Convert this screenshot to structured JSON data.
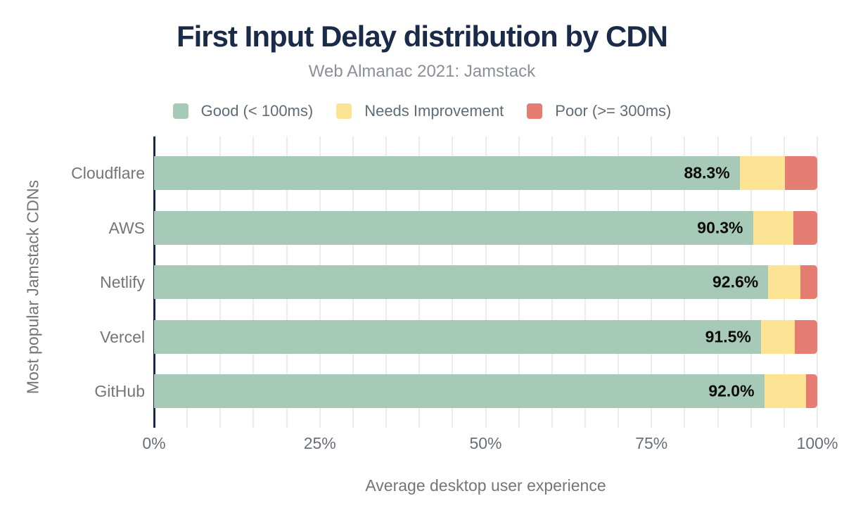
{
  "title": "First Input Delay distribution by CDN",
  "subtitle": "Web Almanac 2021: Jamstack",
  "colors": {
    "good": "#a6c9b8",
    "needs_improvement": "#fde394",
    "poor": "#e57d72",
    "title_text": "#1a2b49",
    "axis_line": "#1a2b49",
    "muted_text": "#757575",
    "grid": "#ececec",
    "bar_value_text": "#0b0b0b"
  },
  "legend": [
    {
      "label": "Good (< 100ms)",
      "color_key": "good"
    },
    {
      "label": "Needs Improvement",
      "color_key": "needs_improvement"
    },
    {
      "label": "Poor (>= 300ms)",
      "color_key": "poor"
    }
  ],
  "chart_data": {
    "type": "bar",
    "orientation": "horizontal",
    "stacked": true,
    "categories": [
      "Cloudflare",
      "AWS",
      "Netlify",
      "Vercel",
      "GitHub"
    ],
    "series": [
      {
        "name": "Good (< 100ms)",
        "color_key": "good",
        "values": [
          88.3,
          90.3,
          92.6,
          91.5,
          92.0
        ]
      },
      {
        "name": "Needs Improvement",
        "color_key": "needs_improvement",
        "values": [
          6.8,
          6.1,
          4.9,
          5.1,
          6.3
        ]
      },
      {
        "name": "Poor (>= 300ms)",
        "color_key": "poor",
        "values": [
          4.9,
          3.6,
          2.5,
          3.4,
          1.7
        ]
      }
    ],
    "bar_labels": [
      "88.3%",
      "90.3%",
      "92.6%",
      "91.5%",
      "92.0%"
    ],
    "xlabel": "Average desktop user experience",
    "ylabel": "Most popular Jamstack CDNs",
    "x_ticks": [
      {
        "label": "0%",
        "value": 0
      },
      {
        "label": "25%",
        "value": 25
      },
      {
        "label": "50%",
        "value": 50
      },
      {
        "label": "75%",
        "value": 75
      },
      {
        "label": "100%",
        "value": 100
      }
    ],
    "xlim": [
      0,
      100
    ],
    "grid_interval_pct": 5,
    "legend_position": "top",
    "grid": true
  }
}
